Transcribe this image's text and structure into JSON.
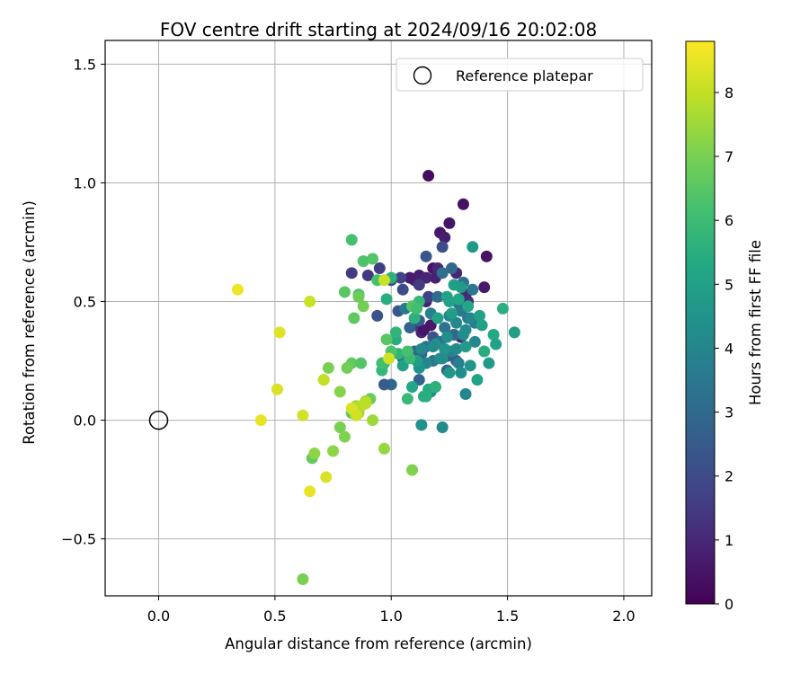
{
  "chart_data": {
    "type": "scatter",
    "title": "FOV centre drift starting at 2024/09/16 20:02:08",
    "xlabel": "Angular distance from reference (arcmin)",
    "ylabel": "Rotation from reference (arcmin)",
    "xlim": [
      -0.23,
      2.12
    ],
    "ylim": [
      -0.74,
      1.6
    ],
    "xticks": [
      0.0,
      0.5,
      1.0,
      1.5,
      2.0
    ],
    "xtick_labels": [
      "0.0",
      "0.5",
      "1.0",
      "1.5",
      "2.0"
    ],
    "yticks": [
      -0.5,
      0.0,
      0.5,
      1.0,
      1.5
    ],
    "ytick_labels": [
      "−0.5",
      "0.0",
      "0.5",
      "1.0",
      "1.5"
    ],
    "grid": true,
    "legend": {
      "location": "top-right",
      "entries": [
        "Reference platepar"
      ]
    },
    "reference_point": {
      "name": "Reference platepar",
      "x": 0.0,
      "y": 0.0,
      "marker": "open-circle"
    },
    "colorbar": {
      "label": "Hours from first FF file",
      "range": [
        0,
        8.8
      ],
      "ticks": [
        0,
        1,
        2,
        3,
        4,
        5,
        6,
        7,
        8
      ],
      "colormap": "viridis"
    },
    "series": [
      {
        "name": "",
        "x": [
          1.16,
          1.31,
          1.25,
          1.21,
          1.23,
          1.41,
          1.4,
          1.18,
          1.19,
          1.12,
          1.15,
          1.1,
          1.08,
          1.2,
          1.28,
          1.32,
          1.33,
          1.15,
          1.17,
          1.13,
          1.3,
          1.27,
          1.1,
          1.14,
          0.83,
          0.9,
          0.95,
          1.04,
          1.12,
          1.16,
          0.94,
          1.0,
          1.05,
          1.15,
          1.22,
          1.03,
          1.12,
          1.18,
          1.24,
          1.28,
          1.08,
          1.13,
          1.26,
          1.22,
          1.31,
          1.35,
          1.2,
          1.29,
          1.06,
          1.11,
          1.17,
          1.25,
          1.3,
          1.33,
          1.36,
          1.23,
          1.27,
          1.21,
          1.15,
          1.1,
          1.05,
          1.0,
          0.97,
          1.12,
          1.19,
          1.24,
          1.18,
          1.26,
          1.29,
          1.34,
          1.28,
          1.32,
          1.24,
          1.19,
          1.13,
          1.07,
          1.18,
          1.23,
          1.31,
          1.36,
          1.28,
          1.22,
          1.15,
          1.25,
          1.3,
          1.34,
          1.21,
          1.12,
          1.17,
          1.32,
          1.22,
          1.13,
          1.35,
          1.3,
          1.27,
          1.38,
          1.24,
          1.33,
          1.4,
          1.48,
          1.44,
          1.45,
          1.53,
          1.42,
          1.37,
          1.39,
          1.26,
          1.29,
          1.2,
          1.16,
          1.09,
          1.05,
          1.11,
          1.14,
          1.25,
          1.32,
          0.98,
          1.0,
          1.02,
          0.96,
          1.03,
          1.08,
          1.1,
          1.12,
          1.19,
          1.15,
          1.07,
          1.02,
          0.97,
          0.83,
          0.88,
          0.92,
          0.94,
          0.96,
          1.0,
          0.98,
          1.07,
          1.09,
          1.11,
          0.86,
          0.84,
          0.8,
          0.83,
          0.86,
          0.83,
          0.91,
          0.87,
          0.88,
          0.78,
          0.8,
          0.81,
          0.78,
          0.73,
          0.66,
          0.67,
          0.62,
          0.71,
          0.85,
          0.89,
          0.97,
          1.09,
          0.75,
          0.86,
          0.87,
          0.92,
          0.89,
          0.97,
          0.84,
          0.99,
          0.72,
          0.65,
          0.52,
          0.51,
          0.34,
          0.62,
          0.44,
          0.65,
          0.71,
          0.83,
          0.85
        ],
        "y": [
          1.03,
          0.91,
          0.83,
          0.79,
          0.77,
          0.69,
          0.56,
          0.64,
          0.6,
          0.61,
          0.6,
          0.59,
          0.6,
          0.64,
          0.62,
          0.53,
          0.5,
          0.5,
          0.4,
          0.37,
          0.35,
          0.36,
          0.4,
          0.38,
          0.62,
          0.61,
          0.64,
          0.6,
          0.57,
          0.52,
          0.44,
          0.59,
          0.55,
          0.69,
          0.73,
          0.46,
          0.42,
          0.35,
          0.27,
          0.25,
          0.39,
          0.28,
          0.64,
          0.62,
          0.58,
          0.55,
          0.52,
          0.49,
          0.47,
          0.48,
          0.45,
          0.44,
          0.46,
          0.43,
          0.41,
          0.39,
          0.36,
          0.33,
          0.31,
          0.29,
          0.26,
          0.15,
          0.15,
          0.17,
          0.14,
          0.21,
          0.25,
          0.29,
          0.24,
          0.43,
          0.41,
          0.38,
          0.35,
          0.32,
          0.3,
          0.27,
          0.31,
          0.3,
          0.36,
          0.33,
          0.3,
          0.26,
          0.24,
          0.2,
          0.2,
          0.23,
          0.26,
          0.22,
          0.12,
          0.11,
          -0.03,
          -0.02,
          0.73,
          0.56,
          0.57,
          0.44,
          0.52,
          0.48,
          0.29,
          0.47,
          0.36,
          0.32,
          0.37,
          0.24,
          0.17,
          0.4,
          0.45,
          0.51,
          0.43,
          0.13,
          0.14,
          0.23,
          0.25,
          0.1,
          0.5,
          0.31,
          0.51,
          0.6,
          0.34,
          0.21,
          0.28,
          0.26,
          0.43,
          0.5,
          0.14,
          0.1,
          0.09,
          0.37,
          0.24,
          0.76,
          0.67,
          0.68,
          0.59,
          0.24,
          0.29,
          0.34,
          0.29,
          0.48,
          0.47,
          0.53,
          0.43,
          0.54,
          0.24,
          0.52,
          0.03,
          0.09,
          0.24,
          0.48,
          -0.03,
          -0.07,
          0.22,
          0.12,
          0.22,
          -0.16,
          -0.14,
          -0.67,
          0.17,
          0.06,
          0.08,
          -0.12,
          -0.21,
          -0.13,
          0.03,
          0.06,
          0.0,
          0.07,
          0.59,
          0.04,
          0.26,
          -0.24,
          -0.3,
          0.37,
          0.13,
          0.55,
          0.02,
          0.0,
          0.5,
          0.17,
          0.05,
          0.02
        ],
        "hours": [
          0.3,
          0.4,
          0.5,
          0.6,
          0.7,
          0.4,
          0.6,
          0.5,
          0.8,
          0.7,
          0.9,
          0.8,
          0.7,
          1.0,
          0.9,
          1.0,
          1.1,
          0.8,
          0.6,
          0.9,
          1.0,
          0.9,
          1.2,
          0.5,
          1.5,
          1.4,
          1.6,
          1.8,
          1.5,
          1.7,
          2.2,
          1.9,
          2.0,
          2.3,
          2.1,
          2.4,
          2.5,
          2.3,
          2.6,
          2.7,
          2.8,
          2.9,
          3.0,
          3.2,
          3.3,
          3.5,
          3.1,
          3.4,
          3.6,
          3.7,
          3.8,
          3.9,
          3.6,
          3.4,
          3.7,
          3.3,
          3.0,
          3.1,
          3.2,
          2.9,
          3.0,
          3.0,
          2.5,
          2.8,
          3.2,
          2.7,
          3.5,
          3.9,
          3.8,
          4.0,
          4.1,
          4.2,
          4.3,
          4.4,
          4.1,
          4.0,
          4.2,
          4.5,
          4.3,
          4.1,
          4.2,
          4.4,
          4.0,
          4.6,
          4.3,
          4.5,
          4.2,
          4.4,
          4.1,
          4.0,
          4.2,
          4.4,
          4.7,
          4.8,
          4.9,
          5.0,
          5.1,
          5.2,
          5.4,
          5.5,
          5.3,
          5.0,
          4.9,
          4.8,
          5.1,
          5.0,
          4.9,
          5.2,
          5.1,
          5.3,
          5.2,
          5.0,
          4.9,
          5.4,
          5.0,
          4.8,
          5.5,
          5.6,
          5.4,
          5.8,
          5.7,
          5.9,
          5.6,
          5.8,
          5.6,
          5.5,
          5.9,
          5.7,
          5.8,
          6.2,
          6.3,
          6.4,
          6.2,
          6.1,
          6.3,
          6.5,
          6.2,
          6.4,
          6.1,
          6.3,
          6.6,
          6.5,
          6.7,
          6.8,
          6.6,
          6.8,
          6.4,
          6.9,
          7.0,
          7.1,
          6.9,
          7.2,
          7.0,
          6.7,
          7.3,
          7.0,
          7.4,
          7.5,
          7.6,
          7.4,
          7.1,
          7.3,
          7.6,
          7.8,
          7.5,
          7.9,
          8.1,
          8.0,
          8.2,
          8.3,
          8.5,
          8.4,
          8.3,
          8.6,
          8.2,
          8.5,
          8.1,
          8.0,
          8.3,
          8.2
        ]
      }
    ]
  }
}
